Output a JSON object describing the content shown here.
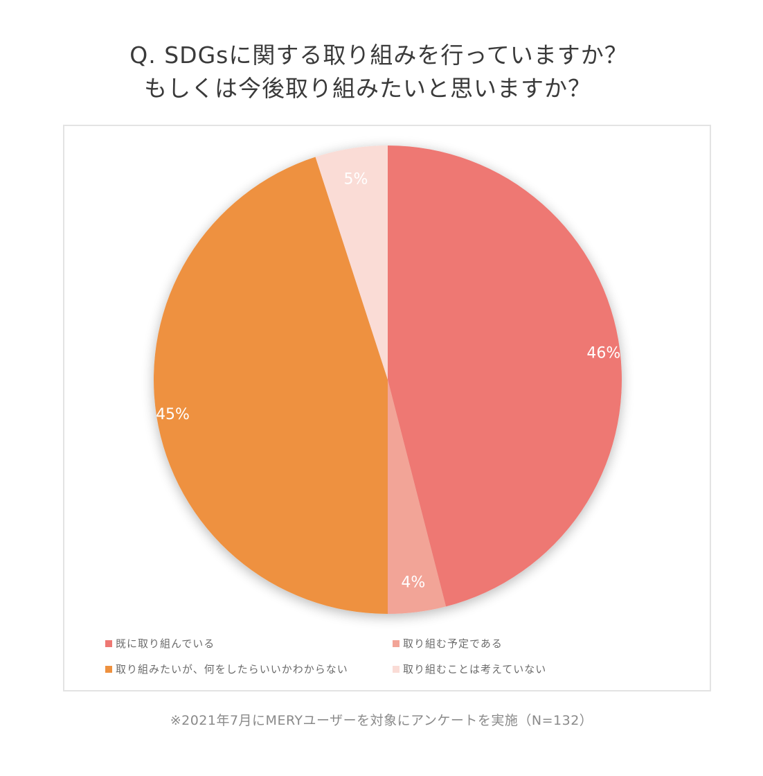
{
  "title": {
    "line1": "Q. SDGsに関する取り組みを行っていますか？",
    "line2": "もしくは今後取り組みたいと思いますか？"
  },
  "footnote": "※2021年7月にMERYユーザーを対象にアンケートを実施（N=132）",
  "legend": [
    {
      "label": "既に取り組んでいる",
      "color": "#EE7873"
    },
    {
      "label": "取り組む予定である",
      "color": "#F2A497"
    },
    {
      "label": "取り組みたいが、何をしたらいいかわからない",
      "color": "#EE913F"
    },
    {
      "label": "取り組むことは考えていない",
      "color": "#FADCD6"
    }
  ],
  "slice_labels": [
    "46%",
    "4%",
    "45%",
    "5%"
  ],
  "chart_data": {
    "type": "pie",
    "title": "Q. SDGsに関する取り組みを行っていますか？ もしくは今後取り組みたいと思いますか？",
    "categories": [
      "既に取り組んでいる",
      "取り組む予定である",
      "取り組みたいが、何をしたらいいかわからない",
      "取り組むことは考えていない"
    ],
    "values": [
      46,
      4,
      45,
      5
    ],
    "unit": "%",
    "colors": [
      "#EE7873",
      "#F2A497",
      "#EE913F",
      "#FADCD6"
    ],
    "start_angle": "12 o'clock",
    "direction": "clockwise",
    "legend_position": "bottom",
    "note": "※2021年7月にMERYユーザーを対象にアンケートを実施（N=132）",
    "sample_size": 132
  }
}
